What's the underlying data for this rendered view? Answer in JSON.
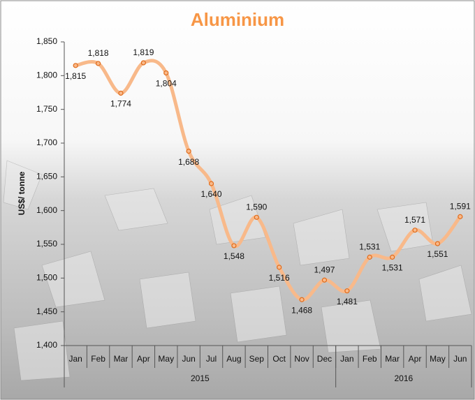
{
  "chart_data": {
    "type": "line",
    "title": "Aluminium",
    "y_label": "US$/ tonne",
    "groups": [
      {
        "name": "2015",
        "categories": [
          "Jan",
          "Feb",
          "Mar",
          "Apr",
          "May",
          "Jun",
          "Jul",
          "Aug",
          "Sep",
          "Oct",
          "Nov",
          "Dec"
        ]
      },
      {
        "name": "2016",
        "categories": [
          "Jan",
          "Feb",
          "Mar",
          "Apr",
          "May",
          "Jun"
        ]
      }
    ],
    "values": [
      1815,
      1818,
      1774,
      1819,
      1804,
      1688,
      1640,
      1548,
      1590,
      1516,
      1468,
      1497,
      1481,
      1531,
      1531,
      1571,
      1551,
      1591
    ],
    "value_labels": [
      "1,815",
      "1,818",
      "1,774",
      "1,819",
      "1,804",
      "1,688",
      "1,640",
      "1,548",
      "1,590",
      "1,516",
      "1,468",
      "1,497",
      "1,481",
      "1,531",
      "1,531",
      "1,571",
      "1,551",
      "1,591"
    ],
    "color": "#f8b98a",
    "marker_color": "#e06b1a",
    "title_color": "#f79646",
    "ylim": [
      1400,
      1850
    ],
    "yticks": [
      {
        "value": 1400,
        "label": "1,400"
      },
      {
        "value": 1450,
        "label": "1,450"
      },
      {
        "value": 1500,
        "label": "1,500"
      },
      {
        "value": 1550,
        "label": "1,550"
      },
      {
        "value": 1600,
        "label": "1,600"
      },
      {
        "value": 1650,
        "label": "1,650"
      },
      {
        "value": 1700,
        "label": "1,700"
      },
      {
        "value": 1750,
        "label": "1,750"
      },
      {
        "value": 1800,
        "label": "1,800"
      },
      {
        "value": 1850,
        "label": "1,850"
      }
    ],
    "smooth": true
  }
}
